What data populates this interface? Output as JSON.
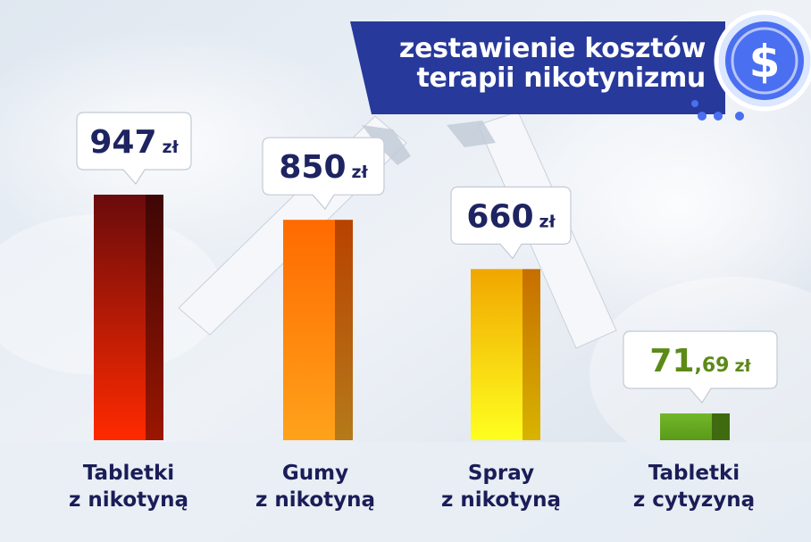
{
  "title": {
    "line1": "zestawienie kosztów",
    "line2": "terapii nikotynizmu"
  },
  "icons": {
    "badge": "dollar-coin-icon"
  },
  "colors": {
    "title_band": "#27399a",
    "label_text": "#1a1d57",
    "value_text_default": "#1e2361",
    "value_text_highlight": "#5c8a18",
    "badge_circle": "#4a6ff0"
  },
  "chart_data": {
    "type": "bar",
    "title": "zestawienie kosztów terapii nikotynizmu",
    "categories": [
      "Tabletki z nikotyną",
      "Gumy z nikotyną",
      "Spray z nikotyną",
      "Tabletki z cytyzyną"
    ],
    "series": [
      {
        "values": [
          947,
          850,
          660,
          71.69
        ]
      }
    ],
    "value_labels": [
      {
        "main": "947",
        "decimal": "",
        "currency": "zł"
      },
      {
        "main": "850",
        "decimal": "",
        "currency": "zł"
      },
      {
        "main": "660",
        "decimal": "",
        "currency": "zł"
      },
      {
        "main": "71",
        "decimal": ",69",
        "currency": "zł"
      }
    ],
    "category_lines": [
      [
        "Tabletki",
        "z nikotyną"
      ],
      [
        "Gumy",
        "z nikotyną"
      ],
      [
        "Spray",
        "z nikotyną"
      ],
      [
        "Tabletki",
        "z cytyzyną"
      ]
    ],
    "bar_colors": [
      {
        "front_top": "#6a0b0b",
        "front_bottom": "#ff2a00",
        "side_top": "#3e0606",
        "side_bottom": "#9a1600"
      },
      {
        "front_top": "#ff6a00",
        "front_bottom": "#ffa21a",
        "side_top": "#b84200",
        "side_bottom": "#b57a1a"
      },
      {
        "front_top": "#f0a600",
        "front_bottom": "#ffff20",
        "side_top": "#c66e00",
        "side_bottom": "#d8b400"
      },
      {
        "front_top": "#72b82a",
        "front_bottom": "#5a9a18",
        "side_top": "#3f6a10",
        "side_bottom": "#3f6a10"
      }
    ],
    "ylim": [
      0,
      1000
    ],
    "grid": false,
    "legend": "none"
  }
}
